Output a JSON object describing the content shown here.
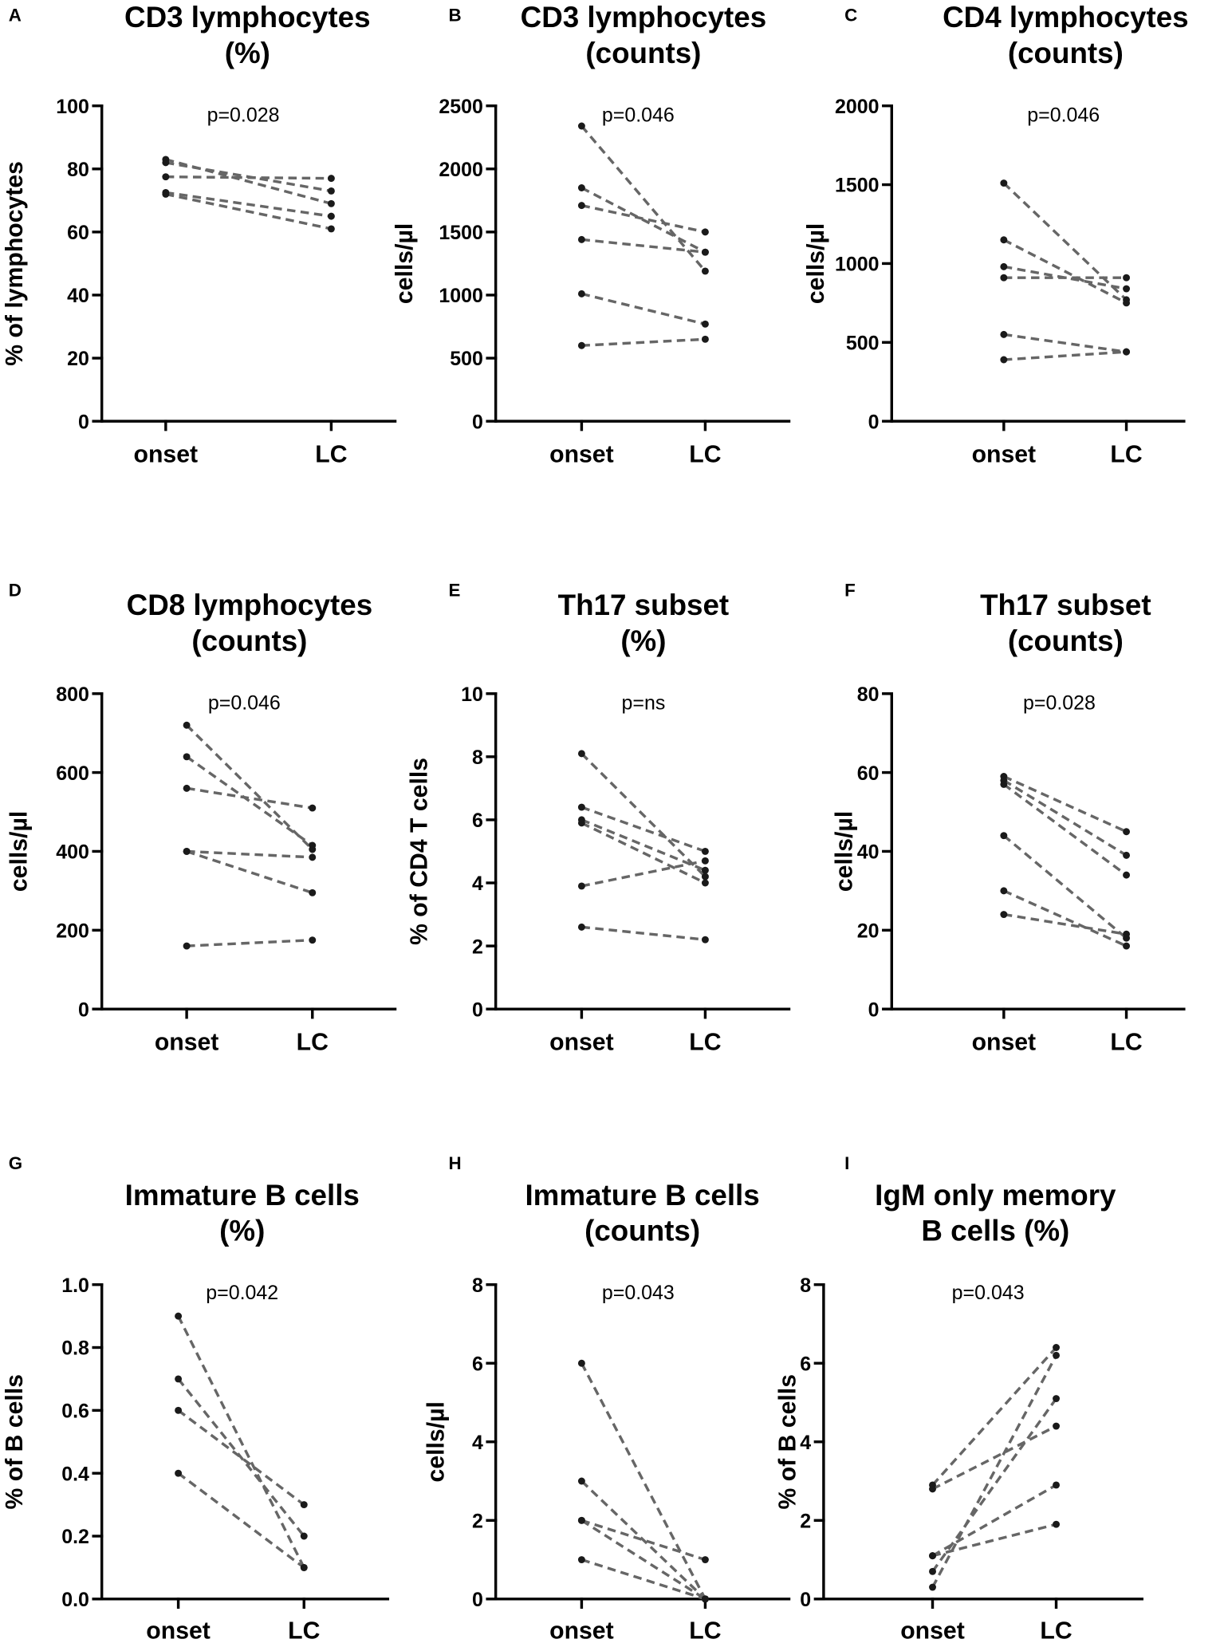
{
  "colors": {
    "line": "#666666",
    "point": "#1a1a1a",
    "axis": "#000000"
  },
  "chart_data": [
    {
      "panel": "A",
      "type": "line",
      "title": [
        "CD3 lymphocytes",
        "(%)"
      ],
      "ylabel": "% of lymphocytes",
      "xlabel": "",
      "categories": [
        "onset",
        "LC"
      ],
      "ylim": [
        0,
        100
      ],
      "yticks": [
        "0",
        "20",
        "40",
        "60",
        "80",
        "100"
      ],
      "annotation": "p=0.028",
      "pairs": [
        [
          83,
          69
        ],
        [
          82,
          73
        ],
        [
          77.5,
          77
        ],
        [
          72.5,
          65
        ],
        [
          72,
          61
        ]
      ]
    },
    {
      "panel": "B",
      "type": "line",
      "title": [
        "CD3 lymphocytes",
        "(counts)"
      ],
      "ylabel": "cells/µl",
      "xlabel": "",
      "categories": [
        "onset",
        "LC"
      ],
      "ylim": [
        0,
        2500
      ],
      "yticks": [
        "0",
        "500",
        "1000",
        "1500",
        "2000",
        "2500"
      ],
      "annotation": "p=0.046",
      "pairs": [
        [
          2340,
          1190
        ],
        [
          1850,
          1340
        ],
        [
          1710,
          1500
        ],
        [
          1440,
          1340
        ],
        [
          1010,
          770
        ],
        [
          600,
          650
        ]
      ]
    },
    {
      "panel": "C",
      "type": "line",
      "title": [
        "CD4 lymphocytes",
        "(counts)"
      ],
      "ylabel": "cells/µl",
      "xlabel": "",
      "categories": [
        "onset",
        "LC"
      ],
      "ylim": [
        0,
        2000
      ],
      "yticks": [
        "0",
        "500",
        "1000",
        "1500",
        "2000"
      ],
      "annotation": "p=0.046",
      "pairs": [
        [
          1510,
          770
        ],
        [
          1150,
          750
        ],
        [
          980,
          840
        ],
        [
          910,
          910
        ],
        [
          550,
          440
        ],
        [
          390,
          440
        ]
      ]
    },
    {
      "panel": "D",
      "type": "line",
      "title": [
        "CD8 lymphocytes",
        "(counts)"
      ],
      "ylabel": "cells/µl",
      "xlabel": "",
      "categories": [
        "onset",
        "LC"
      ],
      "ylim": [
        0,
        800
      ],
      "yticks": [
        "0",
        "200",
        "400",
        "600",
        "800"
      ],
      "annotation": "p=0.046",
      "pairs": [
        [
          720,
          405
        ],
        [
          640,
          415
        ],
        [
          560,
          510
        ],
        [
          400,
          385
        ],
        [
          400,
          295
        ],
        [
          160,
          175
        ]
      ]
    },
    {
      "panel": "E",
      "type": "line",
      "title": [
        "Th17 subset",
        "(%)"
      ],
      "ylabel": "% of CD4 T cells",
      "xlabel": "",
      "categories": [
        "onset",
        "LC"
      ],
      "ylim": [
        0,
        10
      ],
      "yticks": [
        "0",
        "2",
        "4",
        "6",
        "8",
        "10"
      ],
      "annotation": "p=ns",
      "pairs": [
        [
          8.1,
          4.2
        ],
        [
          6.4,
          5.0
        ],
        [
          6.0,
          4.4
        ],
        [
          5.9,
          4.0
        ],
        [
          3.9,
          4.7
        ],
        [
          2.6,
          2.2
        ]
      ]
    },
    {
      "panel": "F",
      "type": "line",
      "title": [
        "Th17 subset",
        "(counts)"
      ],
      "ylabel": "cells/µl",
      "xlabel": "",
      "categories": [
        "onset",
        "LC"
      ],
      "ylim": [
        0,
        80
      ],
      "yticks": [
        "0",
        "20",
        "40",
        "60",
        "80"
      ],
      "annotation": "p=0.028",
      "pairs": [
        [
          59,
          45
        ],
        [
          58,
          39
        ],
        [
          57,
          34
        ],
        [
          44,
          18
        ],
        [
          30,
          16
        ],
        [
          24,
          19
        ]
      ]
    },
    {
      "panel": "G",
      "type": "line",
      "title": [
        "Immature B cells",
        "(%)"
      ],
      "ylabel": "% of B cells",
      "xlabel": "",
      "categories": [
        "onset",
        "LC"
      ],
      "ylim": [
        0,
        1
      ],
      "yticks": [
        "0.0",
        "0.2",
        "0.4",
        "0.6",
        "0.8",
        "1.0"
      ],
      "annotation": "p=0.042",
      "pairs": [
        [
          0.9,
          0.1
        ],
        [
          0.7,
          0.2
        ],
        [
          0.6,
          0.3
        ],
        [
          0.4,
          0.1
        ]
      ]
    },
    {
      "panel": "H",
      "type": "line",
      "title": [
        "Immature B cells",
        "(counts)"
      ],
      "ylabel": "cells/µl",
      "xlabel": "",
      "categories": [
        "onset",
        "LC"
      ],
      "ylim": [
        0,
        8
      ],
      "yticks": [
        "0",
        "2",
        "4",
        "6",
        "8"
      ],
      "annotation": "p=0.043",
      "pairs": [
        [
          6,
          0
        ],
        [
          3,
          0
        ],
        [
          2,
          1
        ],
        [
          2,
          0
        ],
        [
          1,
          0
        ]
      ]
    },
    {
      "panel": "I",
      "type": "line",
      "title": [
        "IgM only memory",
        "B cells (%)"
      ],
      "ylabel": "% of B cells",
      "xlabel": "",
      "categories": [
        "onset",
        "LC"
      ],
      "ylim": [
        0,
        8
      ],
      "yticks": [
        "0",
        "2",
        "4",
        "6",
        "8"
      ],
      "annotation": "p=0.043",
      "pairs": [
        [
          2.9,
          6.4
        ],
        [
          2.8,
          4.4
        ],
        [
          1.1,
          2.9
        ],
        [
          1.1,
          1.9
        ],
        [
          0.7,
          5.1
        ],
        [
          0.3,
          6.2
        ]
      ]
    }
  ]
}
